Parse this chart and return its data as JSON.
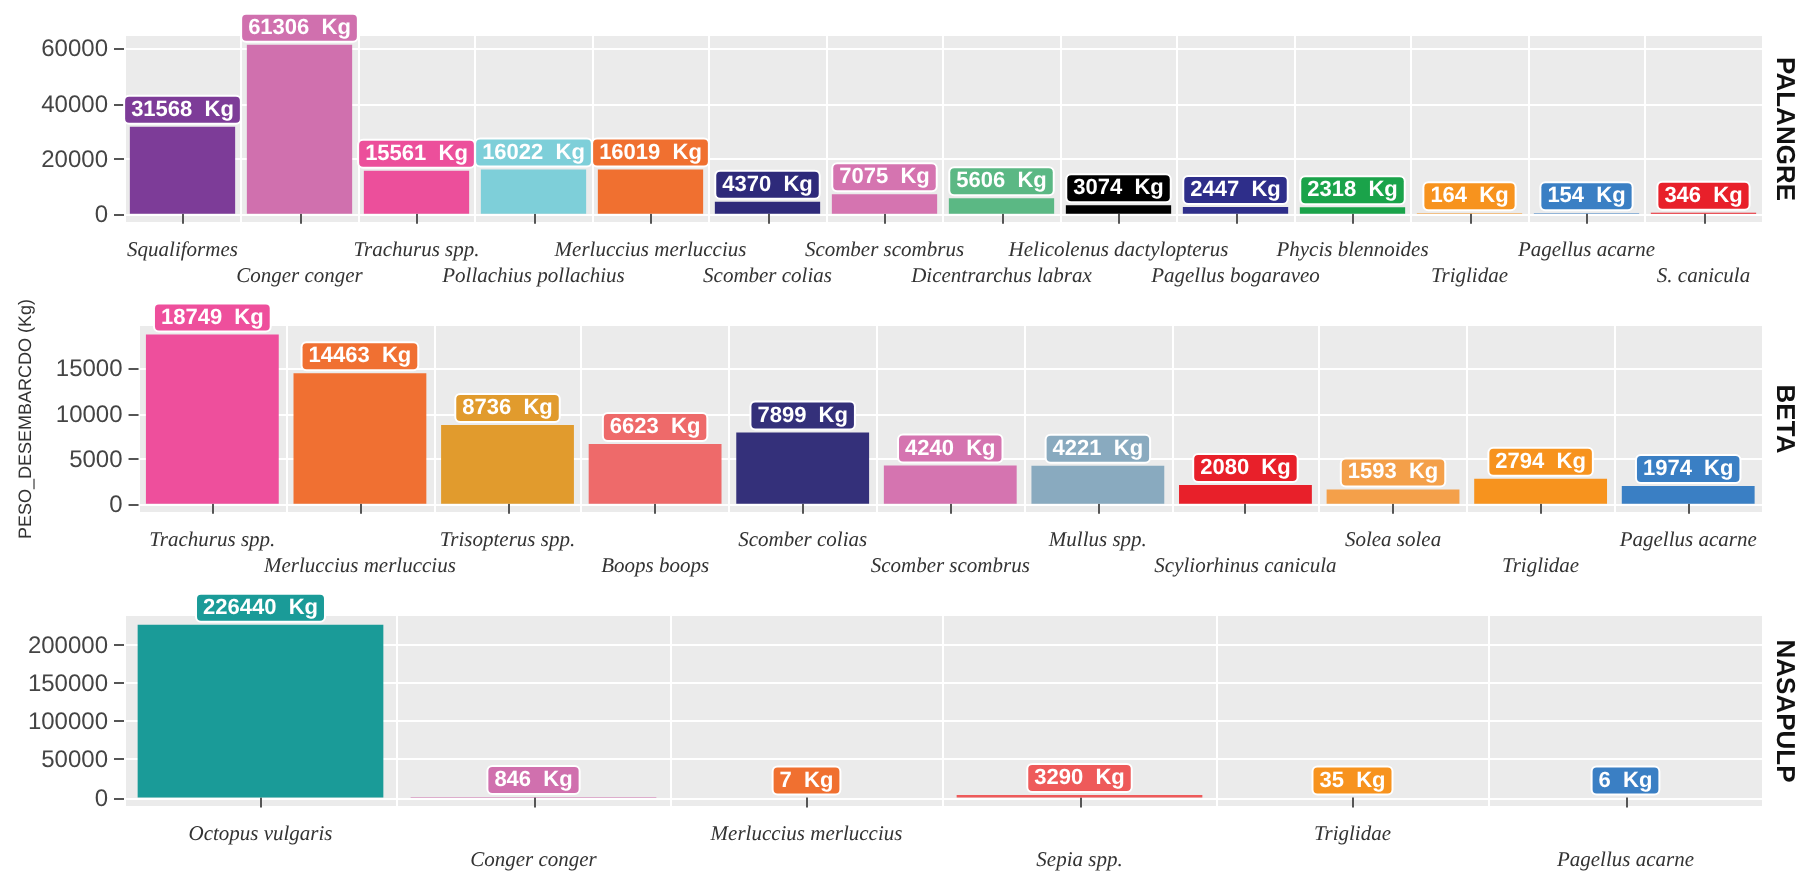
{
  "chart_data": [
    {
      "type": "bar",
      "title": "PALANGRE",
      "categories": [
        "Squaliformes",
        "Conger conger",
        "Trachurus spp.",
        "Pollachius pollachius",
        "Merluccius merluccius",
        "Scomber colias",
        "Scomber scombrus",
        "Dicentrarchus labrax",
        "Helicolenus dactylopterus",
        "Pagellus bogaraveo",
        "Phycis blennoides",
        "Triglidae",
        "Pagellus acarne",
        "S. canicula"
      ],
      "values": [
        31568,
        61306,
        15561,
        16022,
        16019,
        4370,
        7075,
        5606,
        3074,
        2447,
        2318,
        164,
        154,
        346
      ],
      "value_labels": [
        "31568  Kg",
        "61306  Kg",
        "15561  Kg",
        "16022  Kg",
        "16019  Kg",
        "4370  Kg",
        "7075  Kg",
        "5606  Kg",
        "3074  Kg",
        "2447  Kg",
        "2318  Kg",
        "164  Kg",
        "154  Kg",
        "346  Kg"
      ],
      "colors": [
        "#7d3c98",
        "#d070ae",
        "#ec4f9b",
        "#7ecfd9",
        "#f07030",
        "#2e2a7a",
        "#d574b0",
        "#5bb884",
        "#000000",
        "#2e2e8a",
        "#1aa34a",
        "#f7931e",
        "#3a7fc4",
        "#e8202a"
      ],
      "ylim": [
        -3000,
        64500
      ],
      "yticks": [
        0,
        20000,
        40000,
        60000
      ],
      "grid": true
    },
    {
      "type": "bar",
      "title": "BETA",
      "ylabel": "PESO_DESEMBARCDO (Kg)",
      "categories": [
        "Trachurus spp.",
        "Merluccius merluccius",
        "Trisopterus spp.",
        "Boops boops",
        "Scomber colias",
        "Scomber scombrus",
        "Mullus spp.",
        "Scyliorhinus canicula",
        "Solea solea",
        "Triglidae",
        "Pagellus acarne"
      ],
      "values": [
        18749,
        14463,
        8736,
        6623,
        7899,
        4240,
        4221,
        2080,
        1593,
        2794,
        1974
      ],
      "value_labels": [
        "18749  Kg",
        "14463  Kg",
        "8736  Kg",
        "6623  Kg",
        "7899  Kg",
        "4240  Kg",
        "4221  Kg",
        "2080  Kg",
        "1593  Kg",
        "2794  Kg",
        "1974  Kg"
      ],
      "colors": [
        "#ee4f9c",
        "#f07032",
        "#e19b2d",
        "#ee6a6a",
        "#34307a",
        "#d574b0",
        "#89aabf",
        "#e8202a",
        "#f4a04a",
        "#f7931e",
        "#3a7fc4"
      ],
      "ylim": [
        -900,
        19700
      ],
      "yticks": [
        0,
        5000,
        10000,
        15000
      ],
      "grid": true
    },
    {
      "type": "bar",
      "title": "NASAPULP",
      "categories": [
        "Octopus vulgaris",
        "Conger conger",
        "Merluccius merluccius",
        "Sepia spp.",
        "Triglidae",
        "Pagellus acarne"
      ],
      "values": [
        226440,
        846,
        7,
        3290,
        35,
        6
      ],
      "value_labels": [
        "226440  Kg",
        "846  Kg",
        "7  Kg",
        "3290  Kg",
        "35  Kg",
        "6  Kg"
      ],
      "colors": [
        "#1a9b98",
        "#d070ae",
        "#f07030",
        "#ee5a5a",
        "#f7931e",
        "#3a7fc4"
      ],
      "ylim": [
        -11000,
        238000
      ],
      "yticks": [
        0,
        50000,
        100000,
        150000,
        200000
      ],
      "grid": true
    }
  ]
}
